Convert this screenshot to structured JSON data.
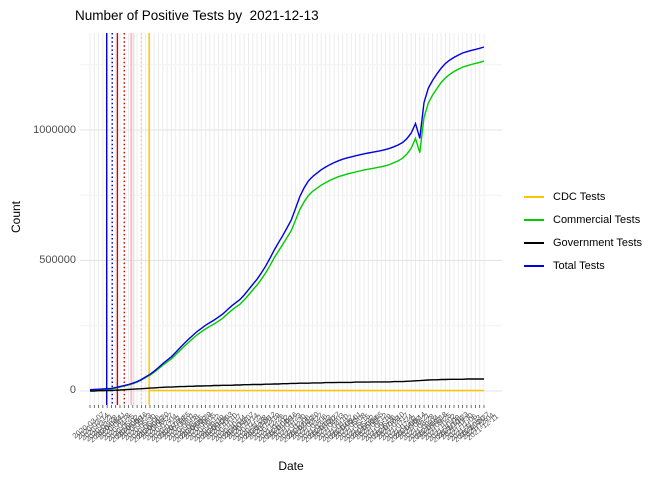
{
  "title": "Number of Positive Tests by  2021-12-13",
  "axes": {
    "x_label": "Date",
    "y_label": "Count",
    "y_ticks": [
      "0",
      "500000",
      "1000000"
    ]
  },
  "chart_data": {
    "type": "line",
    "title": "Number of Positive Tests by  2021-12-13",
    "xlabel": "Date",
    "ylabel": "Count",
    "ylim": [
      0,
      1370000
    ],
    "y_tick_values": [
      0,
      500000,
      1000000
    ],
    "y_minor_gridlines": [
      250000,
      750000,
      1250000
    ],
    "grid": "light-gray vertical line per date, horizontal major+minor",
    "legend_position": "right",
    "x": [
      "2020-03-07",
      "2020-03-14",
      "2020-03-21",
      "2020-03-28",
      "2020-04-04",
      "2020-04-11",
      "2020-04-18",
      "2020-04-25",
      "2020-05-02",
      "2020-05-09",
      "2020-05-16",
      "2020-05-23",
      "2020-05-30",
      "2020-06-06",
      "2020-06-13",
      "2020-06-20",
      "2020-06-27",
      "2020-07-04",
      "2020-07-11",
      "2020-07-18",
      "2020-07-25",
      "2020-08-01",
      "2020-08-08",
      "2020-08-15",
      "2020-08-22",
      "2020-08-29",
      "2020-09-05",
      "2020-09-12",
      "2020-09-19",
      "2020-09-26",
      "2020-10-03",
      "2020-10-10",
      "2020-10-17",
      "2020-10-24",
      "2020-10-31",
      "2020-11-07",
      "2020-11-14",
      "2020-11-21",
      "2020-11-28",
      "2020-12-05",
      "2020-12-12",
      "2020-12-19",
      "2020-12-26",
      "2021-01-02",
      "2021-01-09",
      "2021-01-16",
      "2021-01-23",
      "2021-01-30",
      "2021-02-06",
      "2021-02-13",
      "2021-02-20",
      "2021-02-27",
      "2021-03-06",
      "2021-03-13",
      "2021-03-20",
      "2021-03-27",
      "2021-04-03",
      "2021-04-10",
      "2021-04-17",
      "2021-04-24",
      "2021-05-01",
      "2021-05-08",
      "2021-05-15",
      "2021-05-22",
      "2021-05-29",
      "2021-06-05",
      "2021-06-12",
      "2021-06-19",
      "2021-06-26",
      "2021-07-03",
      "2021-07-10",
      "2021-07-17",
      "2021-07-24",
      "2021-07-31",
      "2021-08-07",
      "2021-08-14",
      "2021-08-21",
      "2021-08-28",
      "2021-09-04",
      "2021-09-11",
      "2021-09-18",
      "2021-09-25",
      "2021-10-02",
      "2021-10-09",
      "2021-10-16",
      "2021-10-23",
      "2021-10-30",
      "2021-11-06",
      "2021-11-13",
      "2021-11-20",
      "2021-11-27",
      "2021-12-04",
      "2021-12-11"
    ],
    "series": [
      {
        "name": "CDC Tests",
        "color": "#FFC400",
        "values": [
          null,
          null,
          null,
          null,
          null,
          null,
          null,
          null,
          null,
          null,
          null,
          null,
          null,
          null,
          2000,
          2000,
          2000,
          2000,
          2000,
          2000,
          2000,
          2000,
          2000,
          2000,
          2000,
          2000,
          2000,
          2000,
          2000,
          2000,
          2000,
          2000,
          2000,
          2000,
          2000,
          2000,
          2000,
          2000,
          2000,
          2000,
          2000,
          2000,
          2000,
          2000,
          2000,
          2000,
          2000,
          2000,
          2000,
          2000,
          2000,
          2000,
          2000,
          2000,
          2000,
          2000,
          2000,
          2000,
          2000,
          2000,
          2000,
          2000,
          2000,
          2000,
          2000,
          2000,
          2000,
          2000,
          2000,
          2000,
          2000,
          2000,
          2000,
          2000,
          2000,
          2000,
          2000,
          2000,
          2000,
          2000,
          2000,
          2000,
          2000,
          2000,
          2000,
          2000,
          2000,
          2000,
          2000,
          2000,
          2000,
          2000,
          2000
        ]
      },
      {
        "name": "Commercial Tests",
        "color": "#00CC00",
        "values": [
          4000,
          5000,
          6000,
          6000,
          7000,
          8000,
          11000,
          15000,
          19000,
          23000,
          28000,
          34000,
          42000,
          52000,
          61000,
          72000,
          85000,
          99000,
          111000,
          123000,
          139000,
          155000,
          171000,
          186000,
          201000,
          215000,
          227000,
          238000,
          248000,
          257000,
          268000,
          279000,
          294000,
          308000,
          321000,
          332000,
          349000,
          368000,
          387000,
          406000,
          428000,
          452000,
          480000,
          510000,
          536000,
          561000,
          588000,
          615000,
          655000,
          695000,
          725000,
          749000,
          765000,
          777000,
          789000,
          798000,
          807000,
          814000,
          821000,
          826000,
          831000,
          835000,
          839000,
          843000,
          847000,
          850000,
          853000,
          856000,
          859000,
          863000,
          868000,
          875000,
          882000,
          892000,
          908000,
          930000,
          968000,
          913000,
          1048000,
          1103000,
          1134000,
          1159000,
          1182000,
          1200000,
          1213000,
          1224000,
          1233000,
          1241000,
          1246000,
          1251000,
          1255000,
          1259000,
          1264000
        ]
      },
      {
        "name": "Government Tests",
        "color": "#000000",
        "values": [
          0,
          0,
          1000,
          1000,
          2000,
          2000,
          3000,
          4000,
          5000,
          6000,
          7000,
          8000,
          9000,
          10000,
          11000,
          12000,
          13000,
          14000,
          15000,
          15000,
          16000,
          17000,
          17000,
          18000,
          18000,
          19000,
          19000,
          20000,
          20000,
          21000,
          21000,
          22000,
          22000,
          22000,
          23000,
          23000,
          24000,
          24000,
          25000,
          25000,
          25000,
          26000,
          26000,
          27000,
          27000,
          28000,
          28000,
          29000,
          29000,
          30000,
          30000,
          30000,
          31000,
          31000,
          31000,
          32000,
          32000,
          32000,
          33000,
          33000,
          33000,
          33000,
          34000,
          34000,
          34000,
          34000,
          35000,
          35000,
          35000,
          35000,
          35000,
          36000,
          36000,
          36000,
          37000,
          38000,
          39000,
          40000,
          41000,
          42000,
          43000,
          43000,
          44000,
          44000,
          45000,
          45000,
          45000,
          45000,
          46000,
          46000,
          46000,
          46000,
          46000
        ]
      },
      {
        "name": "Total Tests",
        "color": "#0000E0",
        "values": [
          5000,
          6000,
          7000,
          8000,
          9000,
          10000,
          13000,
          17000,
          21000,
          25000,
          30000,
          36000,
          44000,
          54000,
          64000,
          76000,
          90000,
          105000,
          118000,
          131000,
          148000,
          165000,
          182000,
          198000,
          213000,
          228000,
          240000,
          252000,
          262000,
          272000,
          283000,
          295000,
          310000,
          325000,
          338000,
          350000,
          368000,
          388000,
          408000,
          428000,
          452000,
          478000,
          508000,
          540000,
          568000,
          595000,
          625000,
          655000,
          700000,
          745000,
          778000,
          805000,
          822000,
          835000,
          848000,
          858000,
          867000,
          875000,
          882000,
          888000,
          893000,
          897000,
          901000,
          905000,
          909000,
          912000,
          915000,
          918000,
          921000,
          925000,
          930000,
          936000,
          943000,
          952000,
          967000,
          988000,
          1025000,
          968000,
          1105000,
          1160000,
          1190000,
          1215000,
          1237000,
          1255000,
          1268000,
          1278000,
          1287000,
          1295000,
          1300000,
          1305000,
          1309000,
          1313000,
          1318000
        ]
      }
    ],
    "vlines": [
      {
        "x_index": 3.9,
        "color": "#0000E0",
        "style": "solid"
      },
      {
        "x_index": 5.2,
        "color": "#0000E0",
        "style": "dotted"
      },
      {
        "x_index": 6.4,
        "color": "#D40000",
        "style": "solid"
      },
      {
        "x_index": 8.0,
        "color": "#D40000",
        "style": "dotted"
      },
      {
        "x_index": 9.6,
        "color": "#FFA9BE",
        "style": "solid"
      },
      {
        "x_index": 10.2,
        "color": "#FFD4DF",
        "style": "solid"
      },
      {
        "x_index": 12.0,
        "color": "#FFB6C1",
        "style": "dotted"
      },
      {
        "x_index": 13.8,
        "color": "#FFC400",
        "style": "solid"
      }
    ]
  }
}
